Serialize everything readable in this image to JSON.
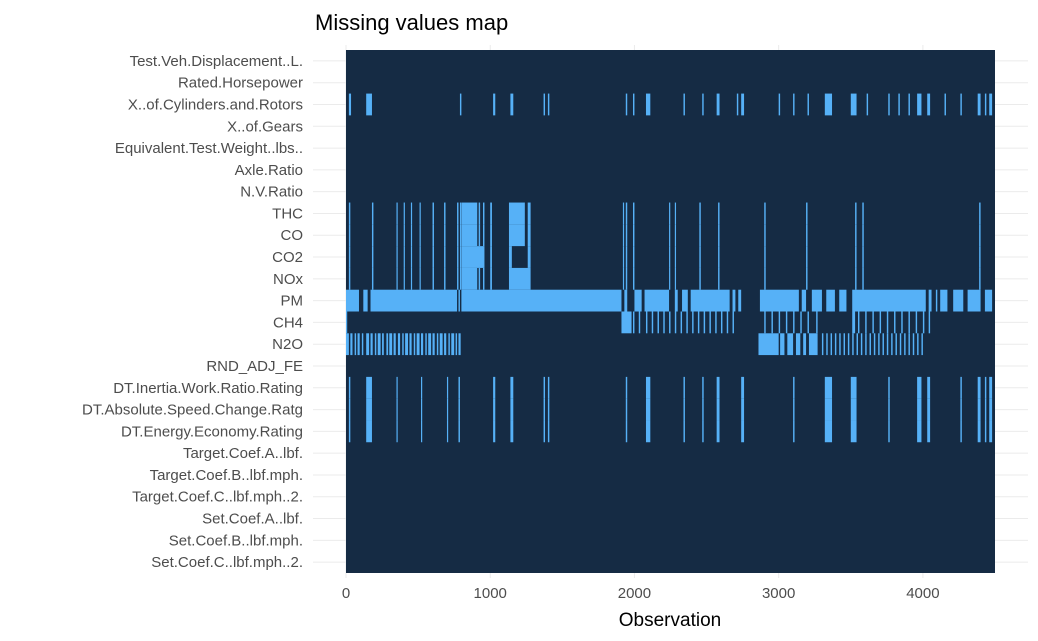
{
  "chart_data": {
    "type": "heatmap",
    "title": "Missing values map",
    "xlabel": "Observation",
    "ylabel": "",
    "xlim": [
      0,
      4500
    ],
    "x_ticks": [
      0,
      1000,
      2000,
      3000,
      4000
    ],
    "x_tick_labels": [
      "0",
      "1000",
      "2000",
      "3000",
      "4000"
    ],
    "variables": [
      "Test.Veh.Displacement..L.",
      "Rated.Horsepower",
      "X..of.Cylinders.and.Rotors",
      "X..of.Gears",
      "Equivalent.Test.Weight..lbs..",
      "Axle.Ratio",
      "N.V.Ratio",
      "THC",
      "CO",
      "CO2",
      "NOx",
      "PM",
      "CH4",
      "N2O",
      "RND_ADJ_FE",
      "DT.Inertia.Work.Ratio.Rating",
      "DT.Absolute.Speed.Change.Ratg",
      "DT.Energy.Economy.Rating",
      "Target.Coef.A..lbf.",
      "Target.Coef.B..lbf.mph.",
      "Target.Coef.C..lbf.mph..2.",
      "Set.Coef.A..lbf.",
      "Set.Coef.B..lbf.mph.",
      "Set.Coef.C..lbf.mph..2."
    ],
    "present_color": "#152b44",
    "missing_color": "#56b1f7",
    "missing_ranges": {
      "X..of.Cylinders.and.Rotors": [
        [
          20,
          35
        ],
        [
          140,
          180
        ],
        [
          790,
          800
        ],
        [
          1020,
          1035
        ],
        [
          1140,
          1160
        ],
        [
          1370,
          1380
        ],
        [
          1400,
          1410
        ],
        [
          1940,
          1950
        ],
        [
          1990,
          2000
        ],
        [
          2080,
          2110
        ],
        [
          2340,
          2350
        ],
        [
          2470,
          2480
        ],
        [
          2570,
          2590
        ],
        [
          2710,
          2720
        ],
        [
          2740,
          2760
        ],
        [
          3000,
          3010
        ],
        [
          3100,
          3110
        ],
        [
          3200,
          3210
        ],
        [
          3320,
          3370
        ],
        [
          3500,
          3540
        ],
        [
          3610,
          3620
        ],
        [
          3760,
          3770
        ],
        [
          3830,
          3840
        ],
        [
          3900,
          3910
        ],
        [
          3960,
          3990
        ],
        [
          4030,
          4050
        ],
        [
          4150,
          4160
        ],
        [
          4260,
          4270
        ],
        [
          4380,
          4400
        ],
        [
          4430,
          4440
        ],
        [
          4460,
          4480
        ]
      ],
      "THC": [
        [
          20,
          30
        ],
        [
          180,
          190
        ],
        [
          350,
          358
        ],
        [
          400,
          408
        ],
        [
          450,
          458
        ],
        [
          510,
          518
        ],
        [
          600,
          610
        ],
        [
          680,
          690
        ],
        [
          770,
          780
        ],
        [
          790,
          798
        ],
        [
          800,
          910
        ],
        [
          920,
          930
        ],
        [
          950,
          960
        ],
        [
          1000,
          1012
        ],
        [
          1130,
          1240
        ],
        [
          1260,
          1280
        ],
        [
          1920,
          1928
        ],
        [
          1940,
          1950
        ],
        [
          1990,
          2000
        ],
        [
          2240,
          2248
        ],
        [
          2280,
          2288
        ],
        [
          2450,
          2460
        ],
        [
          2580,
          2590
        ],
        [
          2900,
          2910
        ],
        [
          3190,
          3200
        ],
        [
          3530,
          3540
        ],
        [
          3580,
          3590
        ],
        [
          4390,
          4400
        ]
      ],
      "CO": [
        [
          20,
          30
        ],
        [
          180,
          190
        ],
        [
          350,
          358
        ],
        [
          400,
          408
        ],
        [
          450,
          458
        ],
        [
          510,
          518
        ],
        [
          600,
          610
        ],
        [
          680,
          690
        ],
        [
          770,
          780
        ],
        [
          790,
          798
        ],
        [
          800,
          910
        ],
        [
          920,
          930
        ],
        [
          950,
          960
        ],
        [
          1000,
          1012
        ],
        [
          1130,
          1240
        ],
        [
          1260,
          1280
        ],
        [
          1920,
          1928
        ],
        [
          1940,
          1950
        ],
        [
          1990,
          2000
        ],
        [
          2240,
          2248
        ],
        [
          2280,
          2288
        ],
        [
          2450,
          2460
        ],
        [
          2580,
          2590
        ],
        [
          2900,
          2910
        ],
        [
          3190,
          3200
        ],
        [
          3530,
          3540
        ],
        [
          3580,
          3590
        ],
        [
          4390,
          4400
        ]
      ],
      "CO2": [
        [
          20,
          30
        ],
        [
          180,
          190
        ],
        [
          350,
          358
        ],
        [
          400,
          408
        ],
        [
          450,
          458
        ],
        [
          510,
          518
        ],
        [
          600,
          610
        ],
        [
          680,
          690
        ],
        [
          770,
          780
        ],
        [
          790,
          798
        ],
        [
          800,
          960
        ],
        [
          1000,
          1012
        ],
        [
          1130,
          1150
        ],
        [
          1260,
          1280
        ],
        [
          1920,
          1928
        ],
        [
          1940,
          1950
        ],
        [
          1990,
          2000
        ],
        [
          2240,
          2248
        ],
        [
          2280,
          2288
        ],
        [
          2450,
          2460
        ],
        [
          2580,
          2590
        ],
        [
          2900,
          2910
        ],
        [
          3190,
          3200
        ],
        [
          3530,
          3540
        ],
        [
          3580,
          3590
        ],
        [
          4390,
          4400
        ]
      ],
      "NOx": [
        [
          20,
          30
        ],
        [
          180,
          190
        ],
        [
          350,
          358
        ],
        [
          400,
          408
        ],
        [
          450,
          458
        ],
        [
          510,
          518
        ],
        [
          600,
          610
        ],
        [
          680,
          690
        ],
        [
          770,
          780
        ],
        [
          790,
          798
        ],
        [
          800,
          910
        ],
        [
          920,
          930
        ],
        [
          950,
          960
        ],
        [
          1000,
          1012
        ],
        [
          1130,
          1280
        ],
        [
          1920,
          1928
        ],
        [
          1940,
          1950
        ],
        [
          1990,
          2000
        ],
        [
          2240,
          2248
        ],
        [
          2280,
          2288
        ],
        [
          2450,
          2460
        ],
        [
          2580,
          2590
        ],
        [
          2900,
          2910
        ],
        [
          3190,
          3200
        ],
        [
          3530,
          3540
        ],
        [
          3580,
          3590
        ],
        [
          4390,
          4400
        ]
      ],
      "PM": [
        [
          0,
          90
        ],
        [
          120,
          150
        ],
        [
          170,
          770
        ],
        [
          780,
          790
        ],
        [
          800,
          1910
        ],
        [
          1930,
          1950
        ],
        [
          2000,
          2050
        ],
        [
          2070,
          2240
        ],
        [
          2280,
          2300
        ],
        [
          2330,
          2370
        ],
        [
          2390,
          2660
        ],
        [
          2680,
          2700
        ],
        [
          2720,
          2740
        ],
        [
          2870,
          3140
        ],
        [
          3160,
          3190
        ],
        [
          3230,
          3300
        ],
        [
          3330,
          3390
        ],
        [
          3420,
          3470
        ],
        [
          3510,
          4020
        ],
        [
          4040,
          4060
        ],
        [
          4090,
          4100
        ],
        [
          4120,
          4170
        ],
        [
          4210,
          4280
        ],
        [
          4310,
          4400
        ],
        [
          4430,
          4480
        ]
      ],
      "CH4": [
        [
          0,
          5
        ],
        [
          1910,
          1980
        ],
        [
          1990,
          2000
        ],
        [
          2030,
          2040
        ],
        [
          2080,
          2090
        ],
        [
          2120,
          2130
        ],
        [
          2160,
          2170
        ],
        [
          2200,
          2210
        ],
        [
          2240,
          2250
        ],
        [
          2280,
          2290
        ],
        [
          2320,
          2330
        ],
        [
          2360,
          2370
        ],
        [
          2400,
          2410
        ],
        [
          2440,
          2450
        ],
        [
          2480,
          2490
        ],
        [
          2520,
          2530
        ],
        [
          2560,
          2570
        ],
        [
          2600,
          2610
        ],
        [
          2640,
          2650
        ],
        [
          2680,
          2690
        ],
        [
          2900,
          2910
        ],
        [
          2950,
          2960
        ],
        [
          3000,
          3010
        ],
        [
          3050,
          3060
        ],
        [
          3100,
          3110
        ],
        [
          3150,
          3160
        ],
        [
          3200,
          3210
        ],
        [
          3260,
          3270
        ],
        [
          3510,
          3530
        ],
        [
          3550,
          3560
        ],
        [
          3600,
          3610
        ],
        [
          3650,
          3660
        ],
        [
          3700,
          3710
        ],
        [
          3750,
          3760
        ],
        [
          3800,
          3810
        ],
        [
          3850,
          3860
        ],
        [
          3900,
          3910
        ],
        [
          3950,
          3960
        ],
        [
          4000,
          4010
        ],
        [
          4040,
          4050
        ]
      ],
      "N2O": [
        [
          0,
          20
        ],
        [
          30,
          45
        ],
        [
          60,
          70
        ],
        [
          80,
          95
        ],
        [
          110,
          120
        ],
        [
          140,
          160
        ],
        [
          170,
          185
        ],
        [
          200,
          210
        ],
        [
          220,
          240
        ],
        [
          250,
          262
        ],
        [
          280,
          292
        ],
        [
          300,
          320
        ],
        [
          330,
          345
        ],
        [
          360,
          375
        ],
        [
          390,
          400
        ],
        [
          410,
          430
        ],
        [
          440,
          455
        ],
        [
          470,
          480
        ],
        [
          490,
          510
        ],
        [
          520,
          535
        ],
        [
          550,
          560
        ],
        [
          570,
          590
        ],
        [
          600,
          615
        ],
        [
          630,
          640
        ],
        [
          650,
          670
        ],
        [
          680,
          695
        ],
        [
          710,
          720
        ],
        [
          730,
          750
        ],
        [
          760,
          770
        ],
        [
          780,
          795
        ],
        [
          2860,
          3000
        ],
        [
          3010,
          3040
        ],
        [
          3060,
          3100
        ],
        [
          3120,
          3150
        ],
        [
          3170,
          3190
        ],
        [
          3210,
          3270
        ],
        [
          3300,
          3310
        ],
        [
          3330,
          3340
        ],
        [
          3360,
          3370
        ],
        [
          3390,
          3400
        ],
        [
          3420,
          3430
        ],
        [
          3450,
          3460
        ],
        [
          3480,
          3490
        ],
        [
          3510,
          3520
        ],
        [
          3540,
          3550
        ],
        [
          3570,
          3580
        ],
        [
          3600,
          3610
        ],
        [
          3630,
          3640
        ],
        [
          3660,
          3670
        ],
        [
          3690,
          3700
        ],
        [
          3720,
          3730
        ],
        [
          3750,
          3760
        ],
        [
          3780,
          3790
        ],
        [
          3810,
          3820
        ],
        [
          3840,
          3850
        ],
        [
          3870,
          3880
        ],
        [
          3900,
          3910
        ],
        [
          3930,
          3940
        ],
        [
          3960,
          3970
        ],
        [
          3990,
          4000
        ]
      ],
      "DT.Inertia.Work.Ratio.Rating": [
        [
          20,
          30
        ],
        [
          140,
          180
        ],
        [
          350,
          358
        ],
        [
          520,
          528
        ],
        [
          700,
          708
        ],
        [
          780,
          790
        ],
        [
          1020,
          1035
        ],
        [
          1140,
          1160
        ],
        [
          1370,
          1380
        ],
        [
          1400,
          1410
        ],
        [
          1940,
          1950
        ],
        [
          2080,
          2110
        ],
        [
          2340,
          2350
        ],
        [
          2470,
          2480
        ],
        [
          2570,
          2590
        ],
        [
          2740,
          2760
        ],
        [
          3100,
          3110
        ],
        [
          3320,
          3370
        ],
        [
          3500,
          3540
        ],
        [
          3760,
          3770
        ],
        [
          3960,
          3990
        ],
        [
          4030,
          4050
        ],
        [
          4260,
          4270
        ],
        [
          4380,
          4400
        ],
        [
          4430,
          4440
        ],
        [
          4460,
          4480
        ]
      ],
      "DT.Absolute.Speed.Change.Ratg": [
        [
          20,
          30
        ],
        [
          140,
          180
        ],
        [
          350,
          358
        ],
        [
          520,
          528
        ],
        [
          700,
          708
        ],
        [
          780,
          790
        ],
        [
          1020,
          1035
        ],
        [
          1140,
          1160
        ],
        [
          1370,
          1380
        ],
        [
          1400,
          1410
        ],
        [
          1940,
          1950
        ],
        [
          2080,
          2110
        ],
        [
          2340,
          2350
        ],
        [
          2470,
          2480
        ],
        [
          2570,
          2590
        ],
        [
          2740,
          2760
        ],
        [
          3100,
          3110
        ],
        [
          3320,
          3370
        ],
        [
          3500,
          3540
        ],
        [
          3760,
          3770
        ],
        [
          3960,
          3990
        ],
        [
          4030,
          4050
        ],
        [
          4260,
          4270
        ],
        [
          4380,
          4400
        ],
        [
          4430,
          4440
        ],
        [
          4460,
          4480
        ]
      ],
      "DT.Energy.Economy.Rating": [
        [
          20,
          30
        ],
        [
          140,
          180
        ],
        [
          350,
          358
        ],
        [
          520,
          528
        ],
        [
          700,
          708
        ],
        [
          780,
          790
        ],
        [
          1020,
          1035
        ],
        [
          1140,
          1160
        ],
        [
          1370,
          1380
        ],
        [
          1400,
          1410
        ],
        [
          1940,
          1950
        ],
        [
          2080,
          2110
        ],
        [
          2340,
          2350
        ],
        [
          2470,
          2480
        ],
        [
          2570,
          2590
        ],
        [
          2740,
          2760
        ],
        [
          3100,
          3110
        ],
        [
          3320,
          3370
        ],
        [
          3500,
          3540
        ],
        [
          3760,
          3770
        ],
        [
          3960,
          3990
        ],
        [
          4030,
          4050
        ],
        [
          4260,
          4270
        ],
        [
          4380,
          4400
        ],
        [
          4430,
          4440
        ],
        [
          4460,
          4480
        ]
      ]
    },
    "grid": true,
    "legend": "none"
  }
}
